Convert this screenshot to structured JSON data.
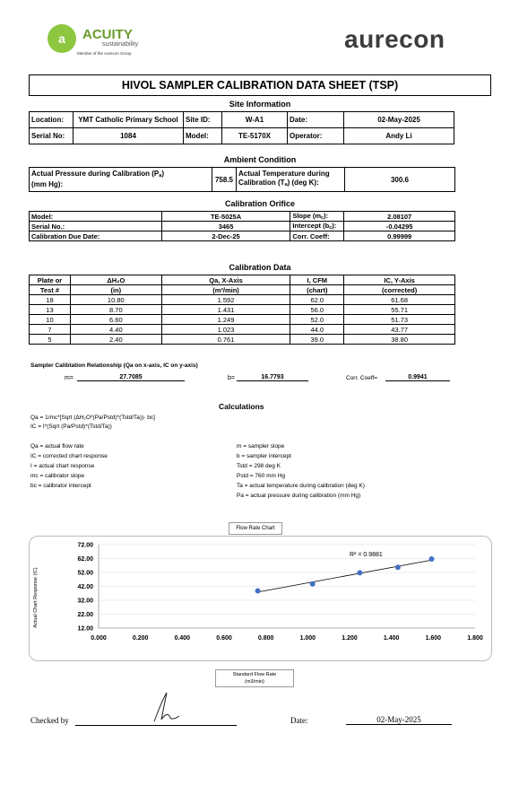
{
  "header": {
    "acuity_name": "ACUITY",
    "acuity_sub": "sustainability",
    "acuity_member": "Member of the Aurecon Group",
    "aurecon_name": "aurecon"
  },
  "title": "HIVOL SAMPLER CALIBRATION  DATA SHEET (TSP)",
  "site": {
    "section_title": "Site Information",
    "location_label": "Location:",
    "location_value": "YMT Catholic Primary School",
    "siteid_label": "Site ID:",
    "siteid_value": "W-A1",
    "date_label": "Date:",
    "date_value": "02-May-2025",
    "serial_label": "Serial No:",
    "serial_value": "1084",
    "model_label": "Model:",
    "model_value": "TE-5170X",
    "operator_label": "Operator:",
    "operator_value": "Andy Li"
  },
  "ambient": {
    "section_title": "Ambient Condition",
    "pressure_label_1": "Actual Pressure during Calibration (P",
    "pressure_label_sub": "a",
    "pressure_label_2": ")",
    "pressure_label_3": "(mm Hg):",
    "pressure_value": "758.5",
    "temp_label_1": "Actual Temperature during",
    "temp_label_2": "Calibration (T",
    "temp_label_sub": "a",
    "temp_label_3": ") (deg K):",
    "temp_value": "300.6"
  },
  "orifice": {
    "section_title": "Calibration Orifice",
    "model_label": "Model:",
    "model_value": "TE-5025A",
    "slope_label": "Slope (m",
    "slope_sub": "c",
    "slope_end": "):",
    "slope_value": "2.08107",
    "serial_label": "Serial No.:",
    "serial_value": "3465",
    "intercept_label": "Intercept (b",
    "intercept_sub": "c",
    "intercept_end": "):",
    "intercept_value": "-0.04295",
    "due_label": "Calibration Due Date:",
    "due_value": "2-Dec-25",
    "coeff_label": "Corr. Coeff:",
    "coeff_value": "0.99999"
  },
  "caldata": {
    "section_title": "Calibration Data",
    "headers_1": [
      "Plate or",
      "ΔH₂O",
      "Qa, X-Axis",
      "I, CFM",
      "IC, Y-Axis"
    ],
    "headers_2": [
      "Test #",
      "(in)",
      "(m³/min)",
      "(chart)",
      "(corrected)"
    ],
    "rows": [
      [
        "18",
        "10.80",
        "1.592",
        "62.0",
        "61.68"
      ],
      [
        "13",
        "8.70",
        "1.431",
        "56.0",
        "55.71"
      ],
      [
        "10",
        "6.60",
        "1.249",
        "52.0",
        "51.73"
      ],
      [
        "7",
        "4.40",
        "1.023",
        "44.0",
        "43.77"
      ],
      [
        "5",
        "2.40",
        "0.761",
        "39.0",
        "38.80"
      ]
    ]
  },
  "relationship": {
    "label": "Sampler Calibtation Relationship (Qa on x-axis, IC on y-axis)",
    "m_label": "m=",
    "m_value": "27.7085",
    "b_label": "b=",
    "b_value": "16.7793",
    "corr_label": "Corr. Coeff=",
    "corr_value": "0.9941"
  },
  "calculations": {
    "title": "Calculations",
    "eq1": "Qa = 1/mc*[Sqrt (ΔH₂O*(Pa/Pstd)*(Tstd/Ta))- bc]",
    "eq2": "IC = I*(Sqrt (Pa/Pstd)*(Tstd/Ta))",
    "left_defs": [
      "Qa = actual flow rate",
      "IC = corrected chart response",
      "I = actual chart response",
      "mc = calibrator slope",
      "bc = calibrator intercept"
    ],
    "right_defs": [
      "m = sampler slope",
      "b  = sampler intercept",
      "Tstd = 298 deg K",
      "Pstd = 760 mm Hg",
      "Ta = actual temperature during calibration (deg K)",
      "Pa = actual pressure during calibration (mm Hg)"
    ]
  },
  "chart_data": {
    "type": "scatter",
    "title": "Flow Rate Chart",
    "xlabel": "Standard Flow Rate (m3/min)",
    "xlabel_1": "Standard Flow Rate",
    "xlabel_2": "(m3/min)",
    "ylabel": "Actual Chart Response (IC)",
    "xlim": [
      0,
      1.8
    ],
    "ylim": [
      12,
      72
    ],
    "x_ticks": [
      "0.000",
      "0.200",
      "0.400",
      "0.600",
      "0.800",
      "1.000",
      "1.200",
      "1.400",
      "1.600",
      "1.800"
    ],
    "y_ticks": [
      "12.00",
      "22.00",
      "32.00",
      "42.00",
      "52.00",
      "62.00",
      "72.00"
    ],
    "series": [
      {
        "x": [
          1.592,
          1.431,
          1.249,
          1.023,
          0.761
        ],
        "y": [
          61.68,
          55.71,
          51.73,
          43.77,
          38.8
        ]
      }
    ],
    "trendline": {
      "slope": 27.7085,
      "intercept": 16.7793
    },
    "r2_label": "R² = 0.9881",
    "marker_color": "#4472c4",
    "grid": true
  },
  "footer": {
    "checked_label": "Checked by",
    "date_label": "Date:",
    "date_value": "02-May-2025"
  }
}
